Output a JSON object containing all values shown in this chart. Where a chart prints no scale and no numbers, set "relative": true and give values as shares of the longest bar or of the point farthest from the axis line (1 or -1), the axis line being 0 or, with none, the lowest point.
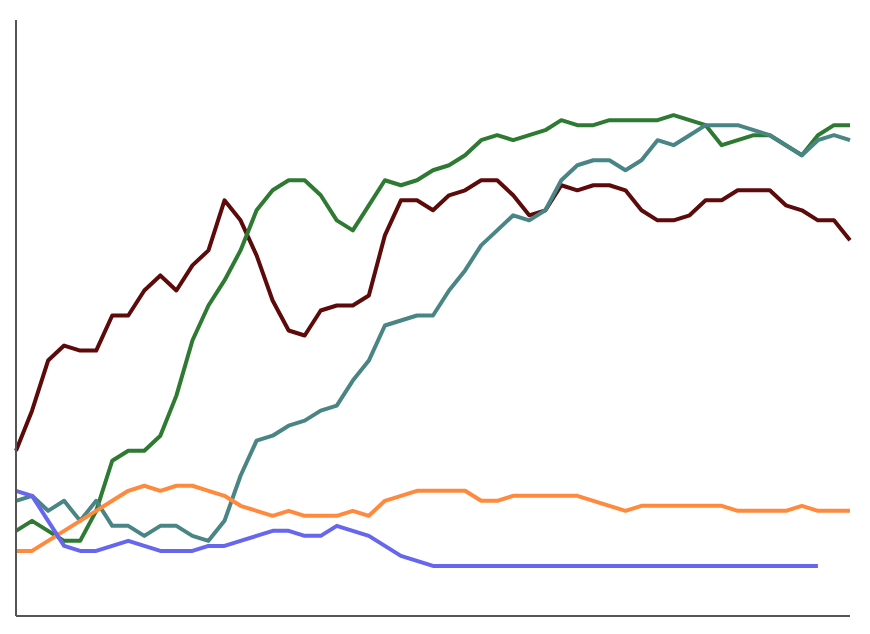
{
  "chart_data": {
    "type": "line",
    "relative": true,
    "categories": [
      null,
      null,
      null,
      null,
      null,
      null,
      null,
      null,
      null,
      null,
      null,
      null,
      null,
      null,
      null,
      null,
      null,
      null,
      null,
      null,
      null,
      null,
      null,
      null,
      null,
      null,
      null,
      null,
      null,
      null,
      null,
      null,
      null,
      null,
      null,
      null,
      null,
      null,
      null,
      null,
      null,
      null,
      null,
      null,
      null,
      null,
      null,
      null,
      null,
      null,
      null,
      null,
      null
    ],
    "marker": "none",
    "legend": false,
    "grid": false,
    "series": [
      {
        "color": "#5c0a0a",
        "values": [
          0.33,
          0.41,
          0.51,
          0.54,
          0.53,
          0.53,
          0.6,
          0.6,
          0.65,
          0.68,
          0.65,
          0.7,
          0.73,
          0.83,
          0.79,
          0.72,
          0.63,
          0.57,
          0.56,
          0.61,
          0.62,
          0.62,
          0.64,
          0.76,
          0.83,
          0.83,
          0.81,
          0.84,
          0.85,
          0.87,
          0.87,
          0.84,
          0.8,
          0.81,
          0.86,
          0.85,
          0.86,
          0.86,
          0.85,
          0.81,
          0.79,
          0.79,
          0.8,
          0.83,
          0.83,
          0.85,
          0.85,
          0.85,
          0.82,
          0.81,
          0.79,
          0.79,
          0.75
        ]
      },
      {
        "color": "#2e7a32",
        "values": [
          0.17,
          0.19,
          0.17,
          0.15,
          0.15,
          0.21,
          0.31,
          0.33,
          0.33,
          0.36,
          0.44,
          0.55,
          0.62,
          0.67,
          0.73,
          0.81,
          0.85,
          0.87,
          0.87,
          0.84,
          0.79,
          0.77,
          0.82,
          0.87,
          0.86,
          0.87,
          0.89,
          0.9,
          0.92,
          0.95,
          0.96,
          0.95,
          0.96,
          0.97,
          0.99,
          0.98,
          0.98,
          0.99,
          0.99,
          0.99,
          0.99,
          1,
          0.99,
          0.98,
          0.94,
          0.95,
          0.96,
          0.96,
          0.94,
          0.92,
          0.96,
          0.98,
          0.98
        ]
      },
      {
        "color": "#4a8585",
        "values": [
          0.23,
          0.24,
          0.21,
          0.23,
          0.19,
          0.23,
          0.18,
          0.18,
          0.16,
          0.18,
          0.18,
          0.16,
          0.15,
          0.19,
          0.28,
          0.35,
          0.36,
          0.38,
          0.39,
          0.41,
          0.42,
          0.47,
          0.51,
          0.58,
          0.59,
          0.6,
          0.6,
          0.65,
          0.69,
          0.74,
          0.77,
          0.8,
          0.79,
          0.81,
          0.87,
          0.9,
          0.91,
          0.91,
          0.89,
          0.91,
          0.95,
          0.94,
          0.96,
          0.98,
          0.98,
          0.98,
          0.97,
          0.96,
          0.94,
          0.92,
          0.95,
          0.96,
          0.95
        ]
      },
      {
        "color": "#ff8a3d",
        "values": [
          0.13,
          0.13,
          0.15,
          0.17,
          0.19,
          0.21,
          0.23,
          0.25,
          0.26,
          0.25,
          0.26,
          0.26,
          0.25,
          0.24,
          0.22,
          0.21,
          0.2,
          0.21,
          0.2,
          0.2,
          0.2,
          0.21,
          0.2,
          0.23,
          0.24,
          0.25,
          0.25,
          0.25,
          0.25,
          0.23,
          0.23,
          0.24,
          0.24,
          0.24,
          0.24,
          0.24,
          0.23,
          0.22,
          0.21,
          0.22,
          0.22,
          0.22,
          0.22,
          0.22,
          0.22,
          0.21,
          0.21,
          0.21,
          0.21,
          0.22,
          0.21,
          0.21,
          0.21
        ]
      },
      {
        "color": "#6666ee",
        "values": [
          0.25,
          0.24,
          0.19,
          0.14,
          0.13,
          0.13,
          0.14,
          0.15,
          0.14,
          0.13,
          0.13,
          0.13,
          0.14,
          0.14,
          0.15,
          0.16,
          0.17,
          0.17,
          0.16,
          0.16,
          0.18,
          0.17,
          0.16,
          0.14,
          0.12,
          0.11,
          0.1,
          0.1,
          0.1,
          0.1,
          0.1,
          0.1,
          0.1,
          0.1,
          0.1,
          0.1,
          0.1,
          0.1,
          0.1,
          0.1,
          0.1,
          0.1,
          0.1,
          0.1,
          0.1,
          0.1,
          0.1,
          0.1,
          0.1,
          0.1,
          0.1,
          null,
          null
        ]
      }
    ]
  }
}
